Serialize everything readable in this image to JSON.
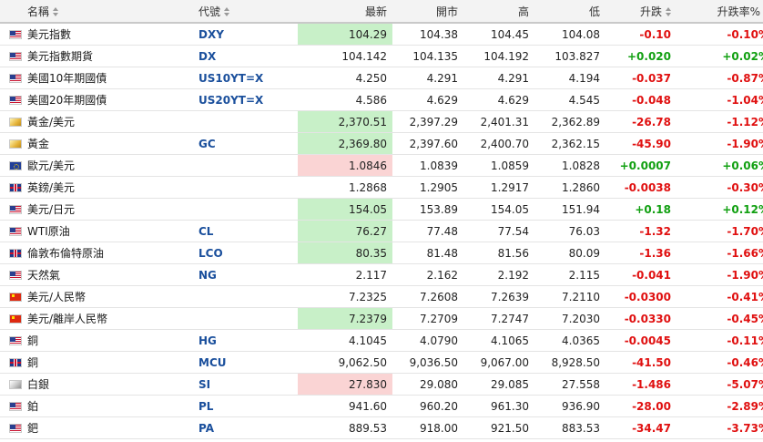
{
  "headers": {
    "name": "名稱",
    "symbol": "代號",
    "last": "最新",
    "open": "開市",
    "high": "高",
    "low": "低",
    "change": "升跌",
    "change_pct": "升跌率%"
  },
  "colors": {
    "up": "#12a012",
    "down": "#e01010",
    "last_up_bg": "#c8f0c8",
    "last_down_bg": "#fad4d4",
    "symbol": "#1a4f9c"
  },
  "rows": [
    {
      "flag": "us-flag",
      "name": "美元指數",
      "symbol": "DXY",
      "last": "104.29",
      "last_highlight": "up",
      "open": "104.38",
      "high": "104.45",
      "low": "104.08",
      "change": "-0.10",
      "change_pct": "-0.10%",
      "dir": "dn"
    },
    {
      "flag": "us-flag",
      "name": "美元指數期貨",
      "symbol": "DX",
      "last": "104.142",
      "last_highlight": "",
      "open": "104.135",
      "high": "104.192",
      "low": "103.827",
      "change": "+0.020",
      "change_pct": "+0.02%",
      "dir": "up"
    },
    {
      "flag": "us-flag",
      "name": "美國10年期國債",
      "symbol": "US10YT=X",
      "last": "4.250",
      "last_highlight": "",
      "open": "4.291",
      "high": "4.291",
      "low": "4.194",
      "change": "-0.037",
      "change_pct": "-0.87%",
      "dir": "dn"
    },
    {
      "flag": "us-flag",
      "name": "美國20年期國債",
      "symbol": "US20YT=X",
      "last": "4.586",
      "last_highlight": "",
      "open": "4.629",
      "high": "4.629",
      "low": "4.545",
      "change": "-0.048",
      "change_pct": "-1.04%",
      "dir": "dn"
    },
    {
      "flag": "gold-icon",
      "name": "黃金/美元",
      "symbol": "",
      "last": "2,370.51",
      "last_highlight": "up",
      "open": "2,397.29",
      "high": "2,401.31",
      "low": "2,362.89",
      "change": "-26.78",
      "change_pct": "-1.12%",
      "dir": "dn"
    },
    {
      "flag": "gold-icon",
      "name": "黃金",
      "symbol": "GC",
      "last": "2,369.80",
      "last_highlight": "up",
      "open": "2,397.60",
      "high": "2,400.70",
      "low": "2,362.15",
      "change": "-45.90",
      "change_pct": "-1.90%",
      "dir": "dn"
    },
    {
      "flag": "eu-flag",
      "name": "歐元/美元",
      "symbol": "",
      "last": "1.0846",
      "last_highlight": "dn",
      "open": "1.0839",
      "high": "1.0859",
      "low": "1.0828",
      "change": "+0.0007",
      "change_pct": "+0.06%",
      "dir": "up"
    },
    {
      "flag": "uk-flag",
      "name": "英鎊/美元",
      "symbol": "",
      "last": "1.2868",
      "last_highlight": "",
      "open": "1.2905",
      "high": "1.2917",
      "low": "1.2860",
      "change": "-0.0038",
      "change_pct": "-0.30%",
      "dir": "dn"
    },
    {
      "flag": "us-flag",
      "name": "美元/日元",
      "symbol": "",
      "last": "154.05",
      "last_highlight": "up",
      "open": "153.89",
      "high": "154.05",
      "low": "151.94",
      "change": "+0.18",
      "change_pct": "+0.12%",
      "dir": "up"
    },
    {
      "flag": "us-flag",
      "name": "WTI原油",
      "symbol": "CL",
      "last": "76.27",
      "last_highlight": "up",
      "open": "77.48",
      "high": "77.54",
      "low": "76.03",
      "change": "-1.32",
      "change_pct": "-1.70%",
      "dir": "dn"
    },
    {
      "flag": "uk-flag",
      "name": "倫敦布倫特原油",
      "symbol": "LCO",
      "last": "80.35",
      "last_highlight": "up",
      "open": "81.48",
      "high": "81.56",
      "low": "80.09",
      "change": "-1.36",
      "change_pct": "-1.66%",
      "dir": "dn"
    },
    {
      "flag": "us-flag",
      "name": "天然氣",
      "symbol": "NG",
      "last": "2.117",
      "last_highlight": "",
      "open": "2.162",
      "high": "2.192",
      "low": "2.115",
      "change": "-0.041",
      "change_pct": "-1.90%",
      "dir": "dn"
    },
    {
      "flag": "cn-flag",
      "name": "美元/人民幣",
      "symbol": "",
      "last": "7.2325",
      "last_highlight": "",
      "open": "7.2608",
      "high": "7.2639",
      "low": "7.2110",
      "change": "-0.0300",
      "change_pct": "-0.41%",
      "dir": "dn"
    },
    {
      "flag": "cn-flag",
      "name": "美元/離岸人民幣",
      "symbol": "",
      "last": "7.2379",
      "last_highlight": "up",
      "open": "7.2709",
      "high": "7.2747",
      "low": "7.2030",
      "change": "-0.0330",
      "change_pct": "-0.45%",
      "dir": "dn"
    },
    {
      "flag": "us-flag",
      "name": "銅",
      "symbol": "HG",
      "last": "4.1045",
      "last_highlight": "",
      "open": "4.0790",
      "high": "4.1065",
      "low": "4.0365",
      "change": "-0.0045",
      "change_pct": "-0.11%",
      "dir": "dn"
    },
    {
      "flag": "uk-flag",
      "name": "銅",
      "symbol": "MCU",
      "last": "9,062.50",
      "last_highlight": "",
      "open": "9,036.50",
      "high": "9,067.00",
      "low": "8,928.50",
      "change": "-41.50",
      "change_pct": "-0.46%",
      "dir": "dn"
    },
    {
      "flag": "silver-icon",
      "name": "白銀",
      "symbol": "SI",
      "last": "27.830",
      "last_highlight": "dn",
      "open": "29.080",
      "high": "29.085",
      "low": "27.558",
      "change": "-1.486",
      "change_pct": "-5.07%",
      "dir": "dn"
    },
    {
      "flag": "us-flag",
      "name": "鉑",
      "symbol": "PL",
      "last": "941.60",
      "last_highlight": "",
      "open": "960.20",
      "high": "961.30",
      "low": "936.90",
      "change": "-28.00",
      "change_pct": "-2.89%",
      "dir": "dn"
    },
    {
      "flag": "us-flag",
      "name": "鈀",
      "symbol": "PA",
      "last": "889.53",
      "last_highlight": "",
      "open": "918.00",
      "high": "921.50",
      "low": "883.53",
      "change": "-34.47",
      "change_pct": "-3.73%",
      "dir": "dn"
    }
  ]
}
